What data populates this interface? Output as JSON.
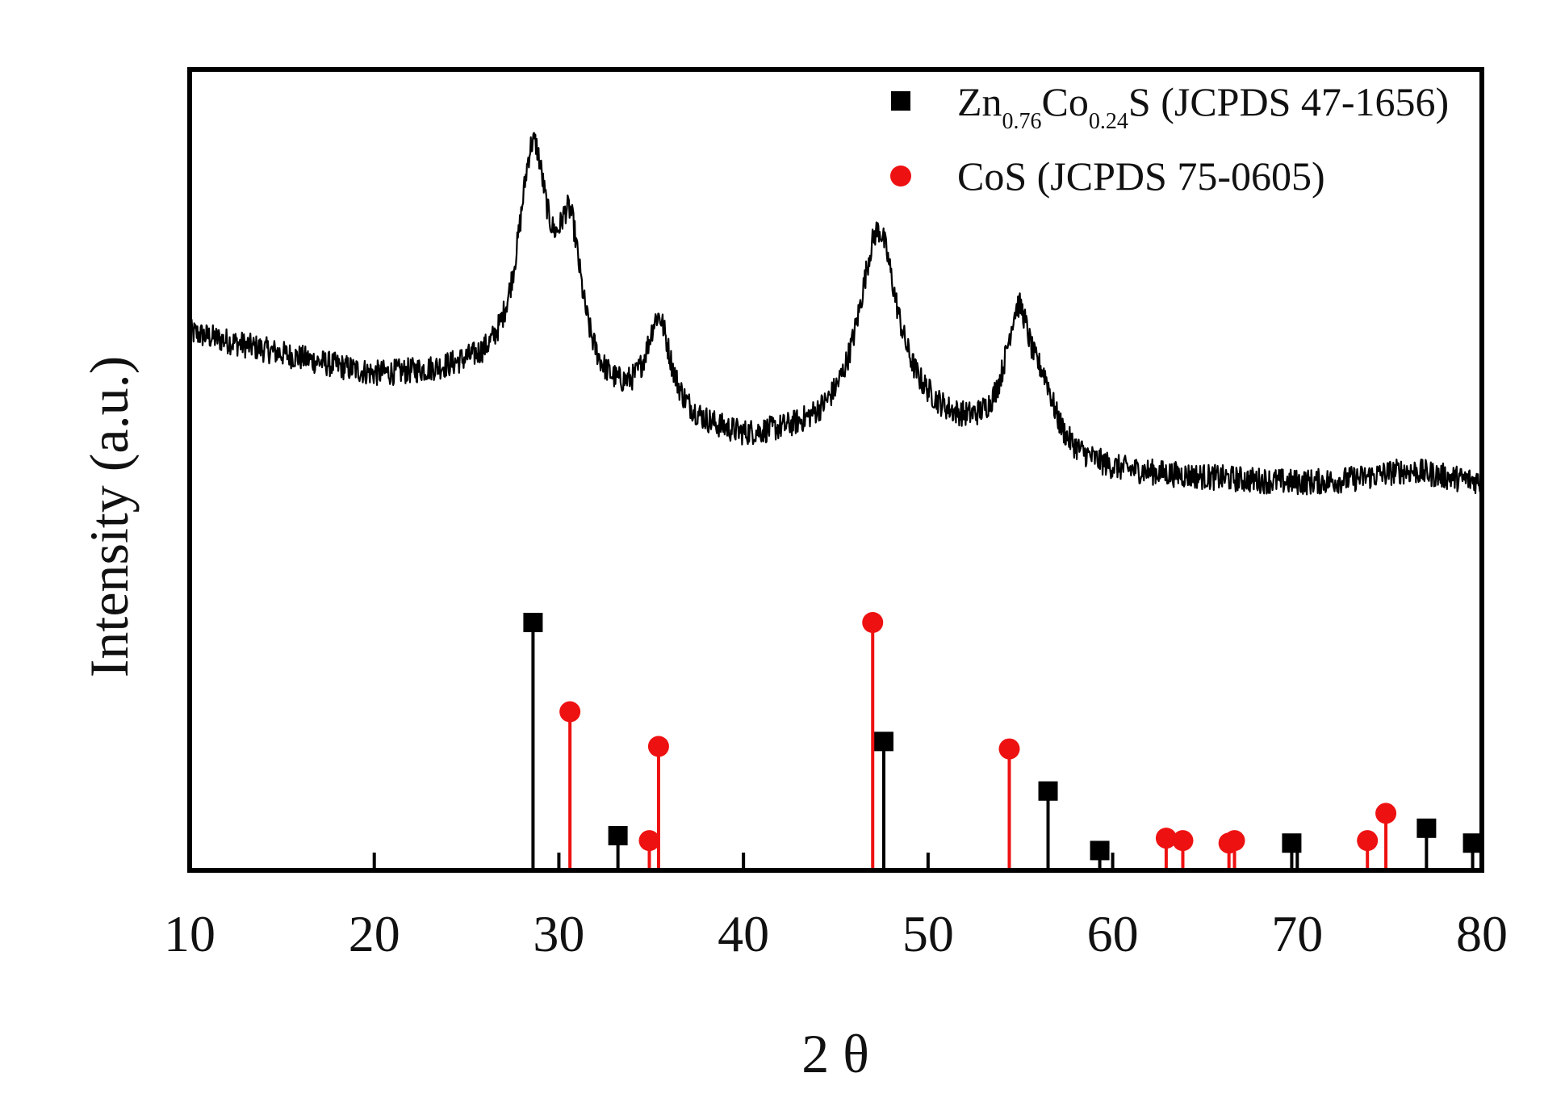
{
  "chart_data": {
    "type": "line",
    "xlabel": "2 θ",
    "ylabel": "Intensity (a.u.)",
    "xlim": [
      10,
      80
    ],
    "x_ticks": [
      "10",
      "20",
      "30",
      "40",
      "50",
      "60",
      "70",
      "80"
    ],
    "grid": false,
    "legend_position": "top-right",
    "colors": {
      "pattern": "#000000",
      "zn_co_s": "#000000",
      "cos": "#ee1111"
    },
    "legend": {
      "zn_co_s": {
        "main": "Zn",
        "sub1": "0.76",
        "mid": "Co",
        "sub2": "0.24",
        "end": "S (JCPDS 47-1656)"
      },
      "cos": "CoS (JCPDS 75-0605)"
    },
    "series": [
      {
        "kind": "pattern",
        "description_key": "measured XRD pattern",
        "peaks": [
          {
            "x": 28.6,
            "intensity": 1.0
          },
          {
            "x": 30.6,
            "intensity": 0.62
          },
          {
            "x": 35.4,
            "intensity": 0.42
          },
          {
            "x": 47.3,
            "intensity": 0.88
          },
          {
            "x": 54.9,
            "intensity": 0.58
          },
          {
            "x": 56.3,
            "intensity": 0.18
          },
          {
            "x": 76.0,
            "intensity": 0.06
          }
        ],
        "baseline": [
          {
            "x": 10,
            "y": 0.45
          },
          {
            "x": 20,
            "y": 0.33
          },
          {
            "x": 25,
            "y": 0.33
          },
          {
            "x": 40,
            "y": 0.15
          },
          {
            "x": 50,
            "y": 0.18
          },
          {
            "x": 60,
            "y": 0.07
          },
          {
            "x": 70,
            "y": 0.04
          },
          {
            "x": 80,
            "y": 0.04
          }
        ]
      },
      {
        "name": "Zn0.76Co0.24S (JCPDS 47-1656)",
        "kind": "reference",
        "marker": "square",
        "x": [
          28.6,
          33.2,
          47.6,
          56.5,
          59.3,
          69.7,
          77.0,
          79.5
        ],
        "values": [
          100,
          14,
          52,
          32,
          8,
          11,
          17,
          11
        ]
      },
      {
        "name": "CoS (JCPDS 75-0605)",
        "kind": "reference",
        "marker": "circle",
        "x": [
          30.6,
          34.9,
          35.4,
          47.0,
          54.4,
          62.9,
          63.8,
          66.3,
          66.6,
          73.8,
          74.8
        ],
        "values": [
          64,
          12,
          50,
          100,
          49,
          13,
          12,
          11,
          12,
          12,
          23
        ]
      },
      {
        "kind": "axis-minor-marks",
        "x": [
          20,
          30,
          40,
          50,
          60,
          70
        ]
      }
    ]
  }
}
